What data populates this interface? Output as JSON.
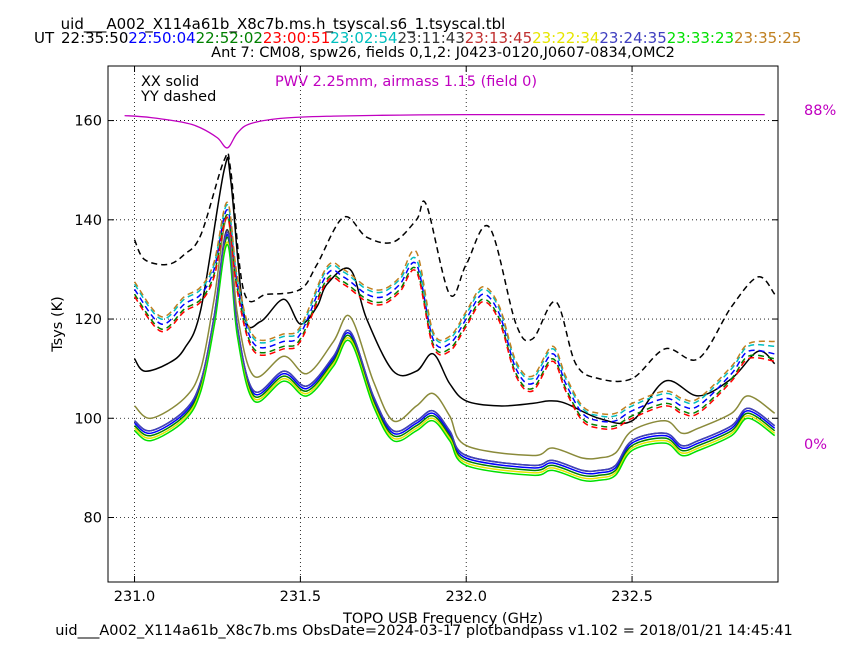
{
  "header": {
    "title": "uid___A002_X114a61b_X8c7b.ms.h_tsyscal.s6_1.tsyscal.tbl",
    "ut_label": "UT",
    "times": [
      {
        "text": "22:35:50",
        "color": "#000000"
      },
      {
        "text": "22:50:04",
        "color": "#0000ff"
      },
      {
        "text": "22:52:02",
        "color": "#008000"
      },
      {
        "text": "23:00:51",
        "color": "#ff0000"
      },
      {
        "text": "23:02:54",
        "color": "#00bfbf"
      },
      {
        "text": "23:11:43",
        "color": "#333333"
      },
      {
        "text": "23:13:45",
        "color": "#c03030"
      },
      {
        "text": "23:22:34",
        "color": "#e6e600"
      },
      {
        "text": "23:24:35",
        "color": "#4040c0"
      },
      {
        "text": "23:33:23",
        "color": "#00e000"
      },
      {
        "text": "23:35:25",
        "color": "#c08020"
      }
    ],
    "subtitle": "Ant 7: CM08,  spw26,  fields 0,1,2: J0423-0120,J0607-0834,OMC2"
  },
  "footer": "uid___A002_X114a61b_X8c7b.ms  ObsDate=2024-03-17   plotbandpass v1.102 = 2018/01/21 14:45:41",
  "chart_data": {
    "type": "line",
    "xlabel": "TOPO USB Frequency (GHz)",
    "ylabel": "Tsys (K)",
    "xlim": [
      230.92,
      232.94
    ],
    "ylim": [
      67,
      171
    ],
    "xticks": [
      231.0,
      231.5,
      232.0,
      232.5
    ],
    "xtick_labels": [
      "231.0",
      "231.5",
      "232.0",
      "232.5"
    ],
    "yticks": [
      80,
      100,
      120,
      140,
      160
    ],
    "grid": true,
    "legend_text": [
      "XX solid",
      "YY dashed"
    ],
    "pwv_annotation": "PWV 2.25mm, airmass 1.15 (field 0)",
    "pwv_color": "#c000c0",
    "right_axis_labels": {
      "top": "88%",
      "bottom": "0%"
    },
    "atm_transmission": {
      "color": "#c000c0",
      "x": [
        230.97,
        231.05,
        231.15,
        231.2,
        231.25,
        231.28,
        231.31,
        231.35,
        231.45,
        231.6,
        231.8,
        232.0,
        232.4,
        232.9
      ],
      "y": [
        161,
        160.6,
        159.6,
        158.5,
        156.5,
        154.5,
        157.5,
        159.4,
        160.5,
        160.9,
        161.1,
        161.2,
        161.2,
        161.2
      ]
    },
    "series": [
      {
        "color": "#000000",
        "dash": false,
        "x": [
          231.0,
          231.03,
          231.1,
          231.15,
          231.2,
          231.27,
          231.29,
          231.33,
          231.38,
          231.45,
          231.5,
          231.55,
          231.58,
          231.65,
          231.7,
          231.78,
          231.85,
          231.9,
          231.95,
          232.0,
          232.1,
          232.2,
          232.25,
          232.3,
          232.4,
          232.5,
          232.6,
          232.7,
          232.8,
          232.88,
          232.93
        ],
        "y": [
          112,
          109.5,
          111,
          114,
          122,
          150,
          148,
          121,
          119.5,
          124,
          119,
          122.5,
          127,
          130,
          120,
          109.5,
          109.5,
          113,
          107,
          103.5,
          102.5,
          103,
          103.5,
          103,
          100,
          99.5,
          107.5,
          104.5,
          108,
          113.5,
          111
        ]
      },
      {
        "color": "#000000",
        "dash": true,
        "x": [
          231.0,
          231.03,
          231.1,
          231.15,
          231.2,
          231.27,
          231.29,
          231.33,
          231.4,
          231.5,
          231.55,
          231.63,
          231.7,
          231.78,
          231.85,
          231.88,
          231.95,
          232.0,
          232.07,
          232.15,
          232.2,
          232.27,
          232.33,
          232.4,
          232.5,
          232.6,
          232.7,
          232.8,
          232.88,
          232.93
        ],
        "y": [
          136,
          132,
          131,
          133,
          137,
          152,
          150,
          125.5,
          125,
          126,
          131,
          140.5,
          136.5,
          135.5,
          140,
          143,
          125,
          131,
          138.5,
          119,
          116,
          123.5,
          111,
          108,
          108,
          114,
          112,
          122.5,
          128.5,
          125
        ]
      },
      {
        "color": "#0000ff",
        "dash": true,
        "x": [
          231.0,
          231.08,
          231.15,
          231.2,
          231.24,
          231.28,
          231.31,
          231.36,
          231.45,
          231.5,
          231.58,
          231.63,
          231.7,
          231.75,
          231.8,
          231.85,
          231.9,
          231.95,
          232.0,
          232.05,
          232.1,
          232.15,
          232.2,
          232.26,
          232.3,
          232.35,
          232.4,
          232.45,
          232.5,
          232.6,
          232.65,
          232.7,
          232.8,
          232.85,
          232.93
        ],
        "y": [
          126,
          119,
          123,
          125,
          130,
          142,
          127,
          115,
          115.5,
          117,
          129,
          128.5,
          125,
          124.5,
          127,
          131,
          116,
          115,
          120,
          125,
          121,
          110,
          107,
          113,
          107,
          101,
          99.5,
          99.5,
          101.5,
          104,
          102.5,
          102.5,
          109,
          113.5,
          113
        ]
      },
      {
        "color": "#008000",
        "dash": true,
        "x": [
          231.0,
          231.08,
          231.15,
          231.2,
          231.24,
          231.28,
          231.31,
          231.36,
          231.45,
          231.5,
          231.58,
          231.63,
          231.7,
          231.75,
          231.8,
          231.85,
          231.9,
          231.95,
          232.0,
          232.05,
          232.1,
          232.15,
          232.2,
          232.26,
          232.3,
          232.35,
          232.4,
          232.45,
          232.5,
          232.6,
          232.65,
          232.7,
          232.8,
          232.85,
          232.93
        ],
        "y": [
          125,
          118,
          122,
          124,
          129,
          141,
          126,
          114,
          114.5,
          116,
          128,
          127.5,
          124,
          123.5,
          126,
          130,
          115,
          114,
          119,
          124,
          120,
          109,
          106,
          112,
          106,
          100,
          98.5,
          98.5,
          100.5,
          103,
          101.5,
          101.5,
          108,
          112.5,
          112
        ]
      },
      {
        "color": "#ff0000",
        "dash": true,
        "x": [
          231.0,
          231.08,
          231.15,
          231.2,
          231.24,
          231.28,
          231.31,
          231.36,
          231.45,
          231.5,
          231.58,
          231.63,
          231.7,
          231.75,
          231.8,
          231.85,
          231.9,
          231.95,
          232.0,
          232.05,
          232.1,
          232.15,
          232.2,
          232.26,
          232.3,
          232.35,
          232.4,
          232.45,
          232.5,
          232.6,
          232.65,
          232.7,
          232.8,
          232.85,
          232.93
        ],
        "y": [
          124.5,
          117.5,
          121.5,
          123.5,
          128.5,
          140.5,
          125.5,
          113.5,
          114,
          115.5,
          127.5,
          127,
          123.5,
          123,
          125.5,
          129.5,
          114.5,
          113.5,
          118.5,
          123.5,
          119.5,
          108.5,
          105.5,
          111.5,
          105.5,
          99.5,
          98,
          98,
          100,
          102.5,
          101,
          101,
          107.5,
          112,
          111.5
        ]
      },
      {
        "color": "#00bfbf",
        "dash": true,
        "x": [
          231.0,
          231.08,
          231.15,
          231.2,
          231.24,
          231.28,
          231.31,
          231.36,
          231.45,
          231.5,
          231.58,
          231.63,
          231.7,
          231.75,
          231.8,
          231.85,
          231.9,
          231.95,
          232.0,
          232.05,
          232.1,
          232.15,
          232.2,
          232.26,
          232.3,
          232.35,
          232.4,
          232.45,
          232.5,
          232.6,
          232.65,
          232.7,
          232.8,
          232.85,
          232.93
        ],
        "y": [
          127,
          120,
          124,
          126,
          131,
          143,
          128,
          116,
          116.5,
          118,
          130,
          129.5,
          126,
          125.5,
          128,
          132,
          117,
          116,
          121,
          126,
          122,
          111,
          108,
          114,
          108,
          102,
          100.5,
          100.5,
          102.5,
          105,
          103.5,
          103.5,
          110,
          114.5,
          114.5
        ]
      },
      {
        "color": "#c08020",
        "dash": true,
        "x": [
          231.0,
          231.08,
          231.15,
          231.2,
          231.24,
          231.28,
          231.31,
          231.36,
          231.45,
          231.5,
          231.58,
          231.63,
          231.7,
          231.75,
          231.8,
          231.85,
          231.9,
          231.95,
          232.0,
          232.05,
          232.1,
          232.15,
          232.2,
          232.26,
          232.3,
          232.35,
          232.4,
          232.45,
          232.5,
          232.6,
          232.65,
          232.7,
          232.8,
          232.85,
          232.93
        ],
        "y": [
          127.5,
          120.5,
          124.5,
          126.5,
          131.5,
          143.5,
          128.5,
          116.5,
          117,
          118.5,
          130.5,
          130,
          126.5,
          126,
          128.5,
          133.5,
          117.5,
          116.5,
          121.5,
          126.5,
          122.5,
          111.5,
          108.5,
          114.5,
          108.5,
          102.5,
          101,
          101,
          103,
          105.5,
          104,
          104,
          110.5,
          115,
          115.5
        ]
      },
      {
        "color": "#0000ff",
        "dash": false,
        "x": [
          231.0,
          231.05,
          231.15,
          231.2,
          231.24,
          231.28,
          231.31,
          231.36,
          231.45,
          231.52,
          231.6,
          231.65,
          231.72,
          231.78,
          231.85,
          231.9,
          231.95,
          232.0,
          232.2,
          232.26,
          232.35,
          232.4,
          232.45,
          232.5,
          232.6,
          232.65,
          232.7,
          232.8,
          232.85,
          232.93
        ],
        "y": [
          99,
          97,
          101,
          107,
          120,
          137,
          118,
          105,
          109,
          106,
          112,
          117,
          104,
          97,
          99,
          101,
          97,
          92,
          90,
          91,
          89,
          89,
          90,
          95,
          96.5,
          94,
          95,
          98,
          101.5,
          98
        ]
      },
      {
        "color": "#008000",
        "dash": false,
        "x": [
          231.0,
          231.05,
          231.15,
          231.2,
          231.24,
          231.28,
          231.31,
          231.36,
          231.45,
          231.52,
          231.6,
          231.65,
          231.72,
          231.78,
          231.85,
          231.9,
          231.95,
          232.0,
          232.2,
          232.26,
          232.35,
          232.4,
          232.45,
          232.5,
          232.6,
          232.65,
          232.7,
          232.8,
          232.85,
          232.93
        ],
        "y": [
          98.5,
          96.5,
          100.5,
          106.5,
          119.5,
          136.5,
          117.5,
          104.5,
          108.5,
          105.5,
          111.5,
          116.5,
          103.5,
          96.5,
          98.5,
          100.5,
          96.5,
          91.5,
          89.5,
          90.5,
          88.5,
          88.5,
          89.5,
          94.5,
          96,
          93.5,
          94.5,
          97.5,
          101,
          97.5
        ]
      },
      {
        "color": "#333333",
        "dash": false,
        "x": [
          231.0,
          231.05,
          231.15,
          231.2,
          231.24,
          231.28,
          231.31,
          231.36,
          231.45,
          231.52,
          231.6,
          231.65,
          231.72,
          231.78,
          231.85,
          231.9,
          231.95,
          232.0,
          232.2,
          232.26,
          232.35,
          232.4,
          232.45,
          232.5,
          232.6,
          232.65,
          232.7,
          232.8,
          232.85,
          232.93
        ],
        "y": [
          99.5,
          97.5,
          101.5,
          107.5,
          120.5,
          138,
          118.5,
          105.5,
          109.5,
          106.5,
          112.5,
          117.5,
          104.5,
          97.5,
          99.5,
          101.5,
          97.5,
          92.5,
          90.5,
          91.5,
          89.5,
          89.5,
          90.5,
          95.5,
          97,
          94.5,
          95.5,
          98.5,
          102,
          98.5
        ]
      },
      {
        "color": "#e6e600",
        "dash": false,
        "x": [
          231.0,
          231.05,
          231.15,
          231.2,
          231.24,
          231.28,
          231.31,
          231.36,
          231.45,
          231.52,
          231.6,
          231.65,
          231.72,
          231.78,
          231.85,
          231.9,
          231.95,
          232.0,
          232.2,
          232.26,
          232.35,
          232.4,
          232.45,
          232.5,
          232.6,
          232.65,
          232.7,
          232.8,
          232.85,
          232.93
        ],
        "y": [
          98,
          96,
          100,
          106,
          119,
          135.5,
          117,
          104,
          108,
          105,
          111,
          116,
          103,
          96,
          98,
          100,
          96,
          91,
          89,
          90,
          88,
          88,
          89,
          94,
          95.5,
          93,
          94,
          97,
          100.5,
          97
        ]
      },
      {
        "color": "#00e000",
        "dash": false,
        "x": [
          231.0,
          231.05,
          231.15,
          231.2,
          231.24,
          231.28,
          231.31,
          231.36,
          231.45,
          231.52,
          231.6,
          231.65,
          231.72,
          231.78,
          231.85,
          231.9,
          231.95,
          232.0,
          232.2,
          232.26,
          232.35,
          232.4,
          232.45,
          232.5,
          232.6,
          232.65,
          232.7,
          232.8,
          232.85,
          232.93
        ],
        "y": [
          97.5,
          95.5,
          99.5,
          105.5,
          118.5,
          135,
          116.5,
          103.5,
          107.5,
          104.5,
          110.5,
          115.5,
          102.5,
          95.5,
          97.5,
          99.5,
          95.5,
          90.5,
          88.5,
          89.5,
          87.5,
          87.5,
          88.5,
          93.5,
          95,
          92.5,
          93.5,
          96.5,
          100,
          96.5
        ]
      },
      {
        "color": "#4040c0",
        "dash": false,
        "x": [
          231.0,
          231.05,
          231.15,
          231.2,
          231.24,
          231.28,
          231.31,
          231.36,
          231.45,
          231.52,
          231.6,
          231.65,
          231.72,
          231.78,
          231.85,
          231.9,
          231.95,
          232.0,
          232.2,
          232.26,
          232.35,
          232.4,
          232.45,
          232.5,
          232.6,
          232.65,
          232.7,
          232.8,
          232.85,
          232.93
        ],
        "y": [
          99.5,
          97.5,
          101.5,
          107.5,
          120.5,
          137.5,
          118.5,
          105.5,
          109.5,
          106.5,
          112.5,
          117.5,
          104.5,
          97.5,
          99.5,
          101.5,
          97.5,
          92.5,
          90.5,
          91.5,
          89.5,
          89.5,
          90.5,
          95.5,
          97,
          94.5,
          95.5,
          98.5,
          102,
          98.5
        ]
      },
      {
        "color": "#8a8a3a",
        "dash": false,
        "x": [
          231.0,
          231.05,
          231.15,
          231.2,
          231.24,
          231.28,
          231.31,
          231.36,
          231.45,
          231.52,
          231.6,
          231.65,
          231.72,
          231.78,
          231.85,
          231.9,
          231.95,
          232.0,
          232.2,
          232.26,
          232.35,
          232.4,
          232.45,
          232.5,
          232.6,
          232.65,
          232.7,
          232.8,
          232.85,
          232.93
        ],
        "y": [
          102.5,
          100,
          104,
          110,
          124,
          140.5,
          121,
          108.5,
          112.5,
          109,
          115.5,
          120.5,
          107.5,
          99.5,
          102.5,
          105,
          100.5,
          94.5,
          92.5,
          94,
          92,
          92,
          93,
          97.5,
          99.5,
          97,
          98,
          101,
          104.5,
          101
        ]
      }
    ]
  }
}
